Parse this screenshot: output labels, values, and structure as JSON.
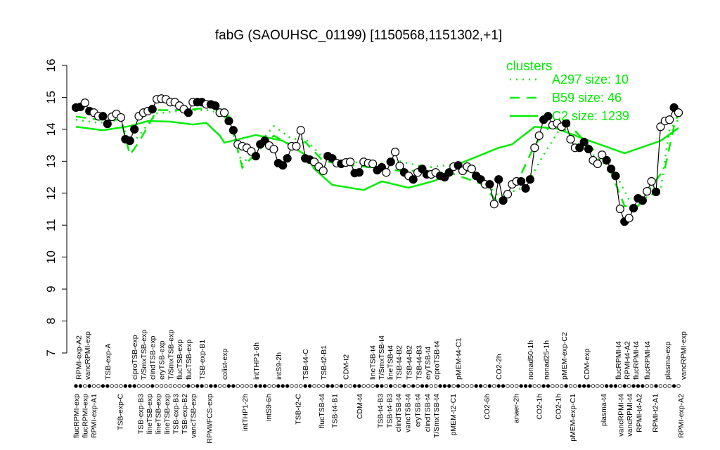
{
  "chart_data": {
    "type": "line",
    "title": "fabG (SAOUHSC_01199) [1150568,1151302,+1]",
    "xlabel": "",
    "ylabel": "",
    "ylim": [
      7,
      16
    ],
    "yticks": [
      7,
      8,
      9,
      10,
      11,
      12,
      13,
      14,
      15,
      16
    ],
    "grid": false,
    "legend": {
      "title": "clusters",
      "placement": "top-right",
      "color": "#00ee00",
      "entries": [
        {
          "label": "A297 size: 10",
          "style": "dotted"
        },
        {
          "label": "B59 size: 46",
          "style": "dashed"
        },
        {
          "label": "C2 size: 1239",
          "style": "solid"
        }
      ]
    },
    "colors": {
      "samples": "#000000",
      "clusters": "#00ee00"
    },
    "samples": [
      [
        14.68,
        1
      ],
      [
        14.7,
        1
      ],
      [
        14.83,
        0
      ],
      [
        14.57,
        1
      ],
      [
        14.52,
        0
      ],
      [
        14.41,
        0
      ],
      [
        14.41,
        1
      ],
      [
        14.17,
        1
      ],
      [
        14.39,
        0
      ],
      [
        14.48,
        0
      ],
      [
        14.37,
        0
      ],
      [
        13.69,
        1
      ],
      [
        13.64,
        1
      ],
      [
        14.0,
        1
      ],
      [
        14.41,
        0
      ],
      [
        14.52,
        0
      ],
      [
        14.57,
        0
      ],
      [
        14.63,
        1
      ],
      [
        14.94,
        0
      ],
      [
        14.96,
        0
      ],
      [
        14.94,
        0
      ],
      [
        14.85,
        0
      ],
      [
        14.85,
        0
      ],
      [
        14.74,
        0
      ],
      [
        14.63,
        0
      ],
      [
        14.52,
        1
      ],
      [
        14.85,
        0
      ],
      [
        14.85,
        1
      ],
      [
        14.85,
        1
      ],
      [
        14.78,
        0
      ],
      [
        14.78,
        1
      ],
      [
        14.74,
        1
      ],
      [
        14.52,
        0
      ],
      [
        14.52,
        0
      ],
      [
        14.26,
        1
      ],
      [
        13.97,
        1
      ],
      [
        13.53,
        0
      ],
      [
        13.47,
        0
      ],
      [
        13.42,
        0
      ],
      [
        13.31,
        0
      ],
      [
        13.16,
        1
      ],
      [
        13.53,
        1
      ],
      [
        13.64,
        1
      ],
      [
        13.49,
        0
      ],
      [
        13.38,
        0
      ],
      [
        12.94,
        1
      ],
      [
        12.87,
        1
      ],
      [
        13.09,
        1
      ],
      [
        13.47,
        0
      ],
      [
        13.47,
        0
      ],
      [
        13.97,
        0
      ],
      [
        13.09,
        1
      ],
      [
        13.05,
        1
      ],
      [
        12.98,
        0
      ],
      [
        12.83,
        0
      ],
      [
        12.7,
        0
      ],
      [
        13.16,
        1
      ],
      [
        13.09,
        1
      ],
      [
        12.94,
        0
      ],
      [
        12.92,
        1
      ],
      [
        12.96,
        0
      ],
      [
        12.98,
        0
      ],
      [
        12.63,
        1
      ],
      [
        12.65,
        1
      ],
      [
        12.98,
        0
      ],
      [
        12.94,
        0
      ],
      [
        12.92,
        0
      ],
      [
        12.72,
        1
      ],
      [
        12.81,
        1
      ],
      [
        12.65,
        0
      ],
      [
        12.98,
        1
      ],
      [
        13.29,
        0
      ],
      [
        12.85,
        0
      ],
      [
        12.65,
        1
      ],
      [
        12.54,
        0
      ],
      [
        12.43,
        1
      ],
      [
        12.65,
        0
      ],
      [
        12.76,
        1
      ],
      [
        12.59,
        1
      ],
      [
        12.59,
        0
      ],
      [
        12.65,
        0
      ],
      [
        12.54,
        1
      ],
      [
        12.5,
        1
      ],
      [
        12.65,
        1
      ],
      [
        12.83,
        0
      ],
      [
        12.87,
        1
      ],
      [
        12.7,
        0
      ],
      [
        12.83,
        0
      ],
      [
        12.76,
        0
      ],
      [
        12.54,
        1
      ],
      [
        12.43,
        1
      ],
      [
        12.28,
        0
      ],
      [
        12.28,
        1
      ],
      [
        11.66,
        0
      ],
      [
        12.43,
        1
      ],
      [
        11.77,
        1
      ],
      [
        11.97,
        0
      ],
      [
        12.28,
        0
      ],
      [
        12.37,
        0
      ],
      [
        12.37,
        1
      ],
      [
        12.15,
        1
      ],
      [
        12.43,
        1
      ],
      [
        13.42,
        0
      ],
      [
        13.8,
        0
      ],
      [
        14.3,
        1
      ],
      [
        14.41,
        1
      ],
      [
        14.13,
        0
      ],
      [
        14.19,
        0
      ],
      [
        14.08,
        0
      ],
      [
        14.19,
        1
      ],
      [
        13.69,
        0
      ],
      [
        13.42,
        0
      ],
      [
        13.42,
        1
      ],
      [
        13.6,
        1
      ],
      [
        13.38,
        1
      ],
      [
        13.03,
        0
      ],
      [
        12.92,
        0
      ],
      [
        13.2,
        0
      ],
      [
        13.03,
        1
      ],
      [
        12.76,
        1
      ],
      [
        12.54,
        1
      ],
      [
        11.51,
        0
      ],
      [
        11.11,
        1
      ],
      [
        11.22,
        0
      ],
      [
        11.53,
        1
      ],
      [
        11.84,
        1
      ],
      [
        11.77,
        1
      ],
      [
        12.06,
        0
      ],
      [
        12.37,
        0
      ],
      [
        12.04,
        1
      ],
      [
        14.08,
        0
      ],
      [
        14.26,
        0
      ],
      [
        14.3,
        0
      ],
      [
        14.68,
        1
      ],
      [
        14.52,
        0
      ]
    ],
    "cluster_lines": {
      "A297": [
        [
          0,
          14.3
        ],
        [
          5,
          14.2
        ],
        [
          10,
          14.3
        ],
        [
          12,
          13.5
        ],
        [
          14,
          13.8
        ],
        [
          18,
          14.5
        ],
        [
          25,
          14.6
        ],
        [
          30,
          14.6
        ],
        [
          34,
          14.3
        ],
        [
          37,
          12.9
        ],
        [
          41,
          13.6
        ],
        [
          44,
          14.1
        ],
        [
          48,
          13.7
        ],
        [
          51,
          13.7
        ],
        [
          55,
          13.1
        ],
        [
          60,
          13.0
        ],
        [
          66,
          12.9
        ],
        [
          72,
          13.0
        ],
        [
          78,
          12.8
        ],
        [
          84,
          12.9
        ],
        [
          90,
          12.5
        ],
        [
          94,
          11.9
        ],
        [
          100,
          12.2
        ],
        [
          104,
          13.2
        ],
        [
          108,
          14.1
        ],
        [
          112,
          13.5
        ],
        [
          116,
          13.1
        ],
        [
          120,
          12.6
        ],
        [
          123,
          11.8
        ],
        [
          126,
          11.8
        ],
        [
          130,
          12.1
        ],
        [
          132,
          14.0
        ],
        [
          134,
          14.3
        ]
      ],
      "B59": [
        [
          0,
          14.4
        ],
        [
          5,
          14.3
        ],
        [
          10,
          14.3
        ],
        [
          12,
          13.2
        ],
        [
          14,
          13.6
        ],
        [
          18,
          14.6
        ],
        [
          25,
          14.6
        ],
        [
          30,
          14.7
        ],
        [
          34,
          14.4
        ],
        [
          37,
          12.8
        ],
        [
          41,
          13.4
        ],
        [
          44,
          13.8
        ],
        [
          48,
          13.5
        ],
        [
          51,
          13.6
        ],
        [
          55,
          13.0
        ],
        [
          60,
          12.9
        ],
        [
          66,
          12.8
        ],
        [
          72,
          12.7
        ],
        [
          78,
          12.7
        ],
        [
          84,
          12.6
        ],
        [
          90,
          12.3
        ],
        [
          94,
          11.7
        ],
        [
          98,
          12.3
        ],
        [
          102,
          13.5
        ],
        [
          106,
          14.2
        ],
        [
          110,
          14.1
        ],
        [
          114,
          13.5
        ],
        [
          118,
          13.0
        ],
        [
          122,
          11.6
        ],
        [
          125,
          11.6
        ],
        [
          128,
          12.2
        ],
        [
          131,
          12.8
        ],
        [
          133,
          14.1
        ],
        [
          134,
          14.5
        ]
      ],
      "C2": [
        [
          0,
          14.08
        ],
        [
          6,
          13.97
        ],
        [
          12,
          14.1
        ],
        [
          16,
          14.26
        ],
        [
          21,
          14.24
        ],
        [
          26,
          14.15
        ],
        [
          29,
          14.2
        ],
        [
          32,
          13.8
        ],
        [
          33,
          13.58
        ],
        [
          40,
          13.82
        ],
        [
          46,
          13.64
        ],
        [
          51,
          13.2
        ],
        [
          53,
          12.76
        ],
        [
          57,
          12.26
        ],
        [
          64,
          12.1
        ],
        [
          68,
          12.37
        ],
        [
          74,
          12.17
        ],
        [
          80,
          12.4
        ],
        [
          84,
          12.85
        ],
        [
          94,
          13.42
        ],
        [
          97,
          13.53
        ],
        [
          102,
          14.08
        ],
        [
          107,
          14.02
        ],
        [
          113,
          13.7
        ],
        [
          122,
          13.25
        ],
        [
          130,
          13.64
        ],
        [
          134,
          14.04
        ]
      ]
    },
    "top_labels": [
      [
        1,
        "RPMI-exp-A2"
      ],
      [
        2,
        "vancRPMI-exp"
      ],
      [
        7,
        "TSB-exp-A"
      ],
      [
        13,
        "ciproTSB-exp"
      ],
      [
        15,
        "T/SmxTSB-exp"
      ],
      [
        17,
        "clindTSB-exp"
      ],
      [
        19,
        "eryTSB-exp"
      ],
      [
        21,
        "T/SmxTSB-exp"
      ],
      [
        23,
        "flucTSB-exp"
      ],
      [
        25,
        "flucTSB-exp"
      ],
      [
        28,
        "TSB-exp-B1"
      ],
      [
        33,
        "colist-exp"
      ],
      [
        40,
        "intTHP1-6h"
      ],
      [
        45,
        "intS9-2h"
      ],
      [
        51,
        "TSB-t4-C"
      ],
      [
        55,
        "TSB-t2-B1"
      ],
      [
        60,
        "CDM-t2"
      ],
      [
        66,
        "lineTSB-t4"
      ],
      [
        68,
        "T/SmxTSB-t4"
      ],
      [
        70,
        "lineTSB-t4"
      ],
      [
        71.5,
        "TSB-t4-B2"
      ],
      [
        74,
        "TSB-t4-B2"
      ],
      [
        76.5,
        "TSB-t4-B3"
      ],
      [
        78,
        "eryTSB-t4"
      ],
      [
        80,
        "ciproTSB-t4"
      ],
      [
        85,
        "pMEM-t4-C1"
      ],
      [
        94,
        "CO2-2h"
      ],
      [
        101,
        "nonad50-1h"
      ],
      [
        104.5,
        "nonad25-1h"
      ],
      [
        108.5,
        "pMEM-exp-C2"
      ],
      [
        113.5,
        "CDM-exp"
      ],
      [
        121,
        "flucRPMI-t4"
      ],
      [
        122,
        "RPMI-t4-A2"
      ],
      [
        124.5,
        "flucRPMI-t4"
      ],
      [
        127,
        "flucRPMI-t4"
      ],
      [
        131.5,
        "plasma-exp"
      ],
      [
        135,
        "vancRPMI-exp"
      ]
    ],
    "bottom_labels": [
      [
        0.3,
        "flucRPMI-exp"
      ],
      [
        2,
        "flucRPMI-exp"
      ],
      [
        3.6,
        "RPMI-exp-A1"
      ],
      [
        9.8,
        "TSB-exp-C"
      ],
      [
        15.3,
        "TSB-exp-B3"
      ],
      [
        16.8,
        "lineTSB-exp"
      ],
      [
        18.9,
        "lineTSB-exp"
      ],
      [
        20.8,
        "lineTSB-exp"
      ],
      [
        21.4,
        "TSB-exp-B3"
      ],
      [
        23.1,
        "TSB-exp-B2"
      ],
      [
        24.9,
        "vancTSB-exp"
      ],
      [
        29.6,
        "RPMI/FCS-exp"
      ],
      [
        37.5,
        "intTHP1-2h"
      ],
      [
        42.8,
        "intS9-6h"
      ],
      [
        49.3,
        "TSB-t2-C"
      ],
      [
        54.6,
        "flucTSB-t4"
      ],
      [
        57.5,
        "TSB-t4-B1"
      ],
      [
        63,
        "CDM-t4"
      ],
      [
        67.6,
        "TSB-t4-B3"
      ],
      [
        69.8,
        "TSB-t4-B3"
      ],
      [
        71.5,
        "clindTSB-t4"
      ],
      [
        73.7,
        "vancTSB-t4"
      ],
      [
        75.9,
        "eryTSB-t4"
      ],
      [
        78.1,
        "clindTSB-t4"
      ],
      [
        80,
        "T/SmxTSB-t4"
      ],
      [
        83.8,
        "pMEM-t2-C1"
      ],
      [
        91.3,
        "CO2-6h"
      ],
      [
        97.8,
        "anaer-2h"
      ],
      [
        103,
        "CO2-1h"
      ],
      [
        107.2,
        "CO2-1h"
      ],
      [
        110.4,
        "pMEM-exp-C1"
      ],
      [
        117.3,
        "plasma-t4"
      ],
      [
        121.6,
        "vancRPMI-t4"
      ],
      [
        122.5,
        "vancRPMI-t4"
      ],
      [
        125.2,
        "RPMI-t4-A2"
      ],
      [
        128.8,
        "RPMI-t2-A1"
      ],
      [
        134.5,
        "RPMI-exp-A2"
      ]
    ]
  }
}
